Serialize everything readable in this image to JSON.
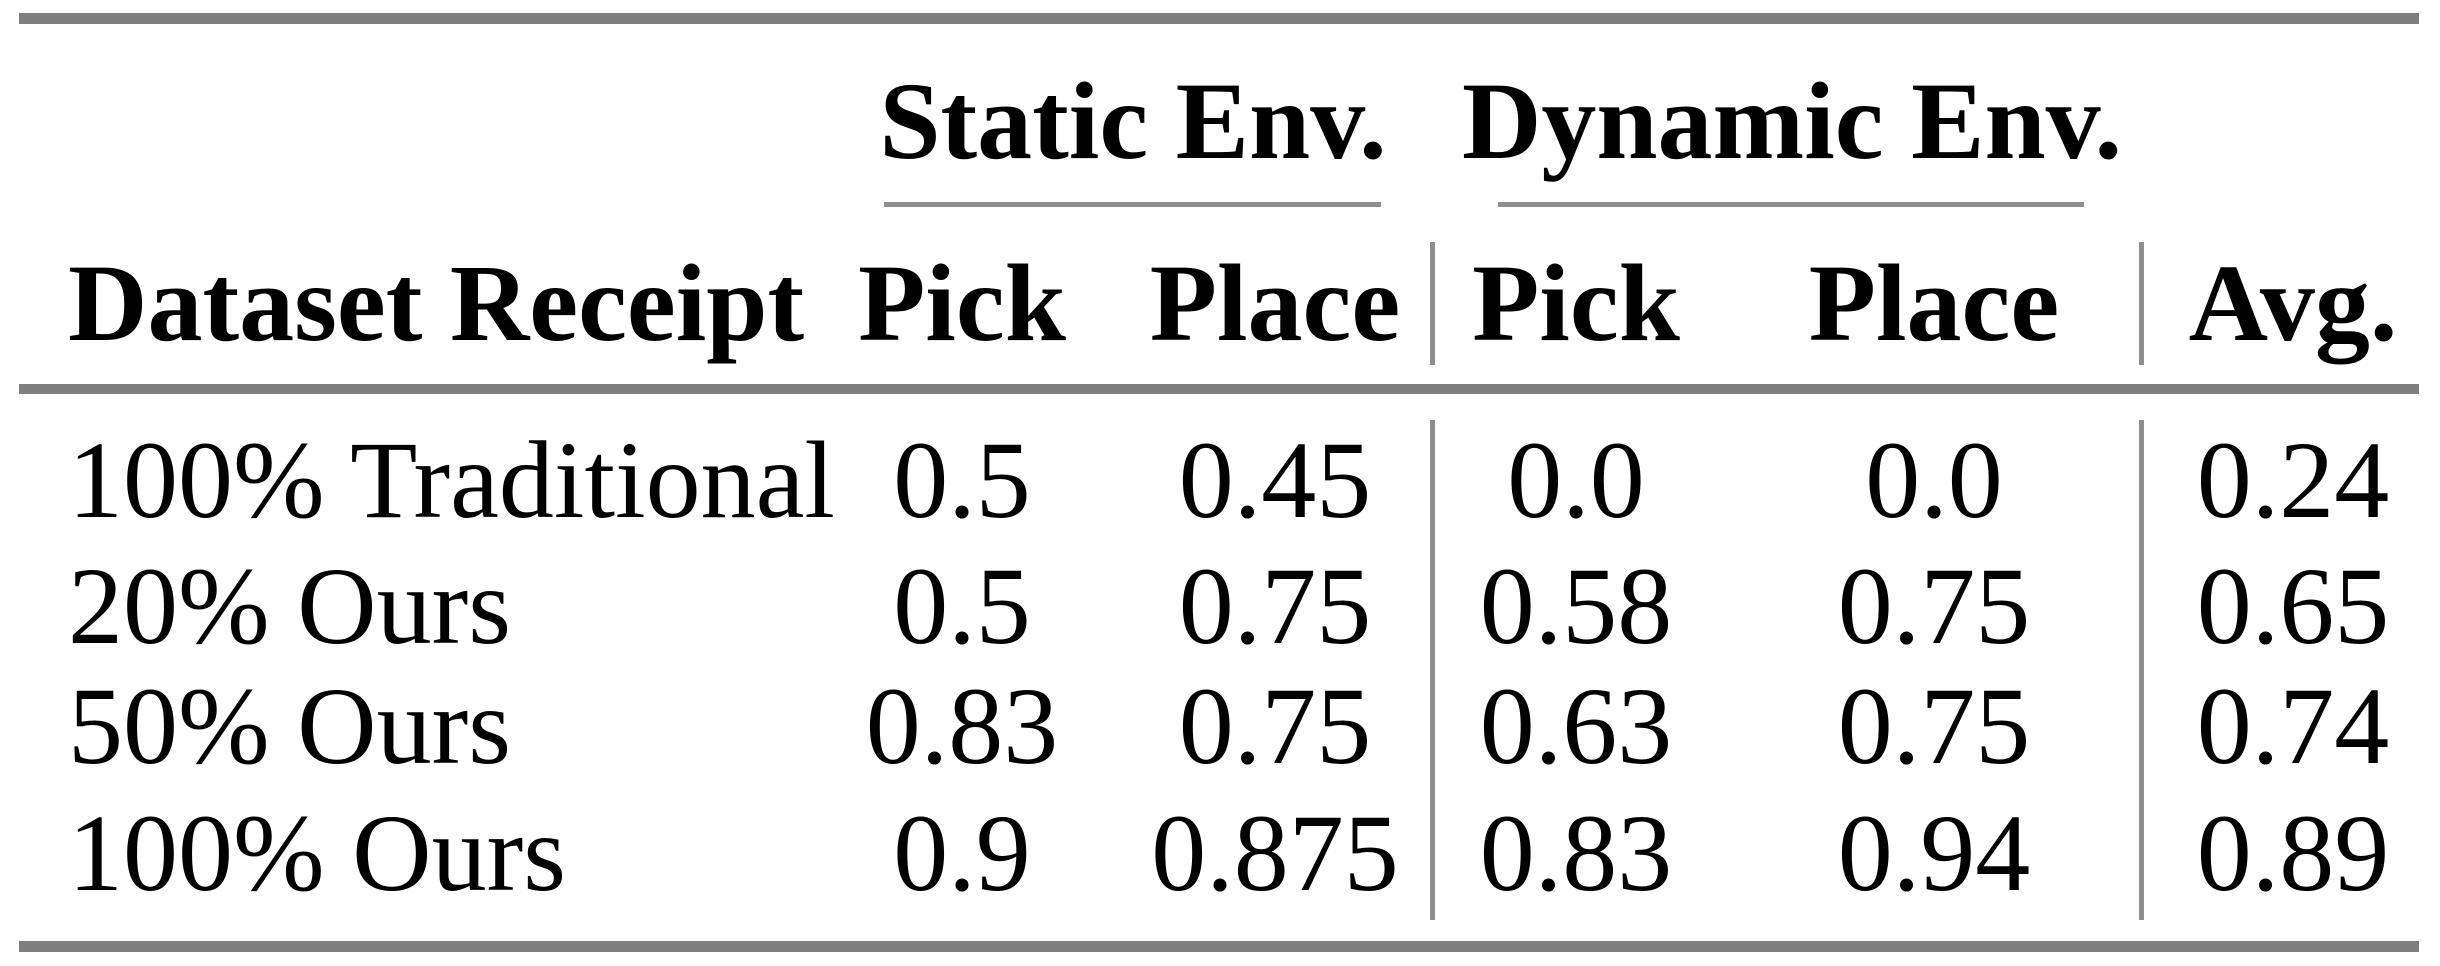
{
  "table": {
    "groups": [
      {
        "label": "Static Env."
      },
      {
        "label": "Dynamic Env."
      }
    ],
    "columns": [
      "Dataset Receipt",
      "Pick",
      "Place",
      "Pick",
      "Place",
      "Avg."
    ],
    "rows": [
      {
        "label": "100% Traditional",
        "values": [
          "0.5",
          "0.45",
          "0.0",
          "0.0",
          "0.24"
        ]
      },
      {
        "label": "20% Ours",
        "values": [
          "0.5",
          "0.75",
          "0.58",
          "0.75",
          "0.65"
        ]
      },
      {
        "label": "50% Ours",
        "values": [
          "0.83",
          "0.75",
          "0.63",
          "0.75",
          "0.74"
        ]
      },
      {
        "label": "100% Ours",
        "values": [
          "0.9",
          "0.875",
          "0.83",
          "0.94",
          "0.89"
        ]
      }
    ]
  },
  "colors": {
    "rule": "#7f7f7f",
    "thin_rule": "#8e8e8e",
    "text": "#000000",
    "background": "#ffffff"
  },
  "chart_data": {
    "type": "table",
    "title": "",
    "column_groups": [
      {
        "label": "Static Env.",
        "columns": [
          "Pick",
          "Place"
        ]
      },
      {
        "label": "Dynamic Env.",
        "columns": [
          "Pick",
          "Place"
        ]
      }
    ],
    "row_header": "Dataset Receipt",
    "categories": [
      "100% Traditional",
      "20% Ours",
      "50% Ours",
      "100% Ours"
    ],
    "series": [
      {
        "name": "Static Pick",
        "values": [
          0.5,
          0.5,
          0.83,
          0.9
        ]
      },
      {
        "name": "Static Place",
        "values": [
          0.45,
          0.75,
          0.75,
          0.875
        ]
      },
      {
        "name": "Dynamic Pick",
        "values": [
          0.0,
          0.58,
          0.63,
          0.83
        ]
      },
      {
        "name": "Dynamic Place",
        "values": [
          0.0,
          0.75,
          0.75,
          0.94
        ]
      },
      {
        "name": "Avg.",
        "values": [
          0.24,
          0.65,
          0.74,
          0.89
        ]
      }
    ]
  }
}
